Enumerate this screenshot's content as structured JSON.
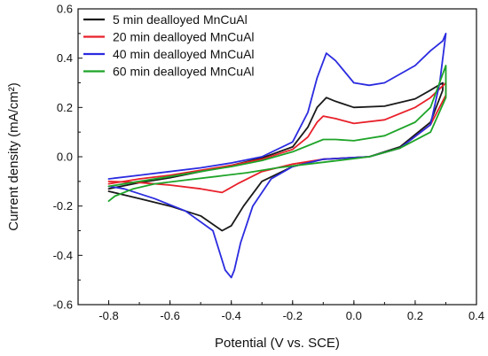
{
  "chart_data": {
    "type": "line",
    "xlabel": "Potential (V vs. SCE)",
    "ylabel": "Current density (mA/cm²)",
    "xlim": [
      -0.9,
      0.4
    ],
    "ylim": [
      -0.6,
      0.6
    ],
    "x_ticks": [
      "-0.8",
      "-0.6",
      "-0.4",
      "-0.2",
      "0.0",
      "0.2",
      "0.4"
    ],
    "y_ticks": [
      "0.6",
      "0.4",
      "0.2",
      "0.0",
      "-0.2",
      "-0.4",
      "-0.6"
    ],
    "legend_position": "top-left",
    "series": [
      {
        "name": "5 min dealloyed MnCuAl",
        "color": "#1a1a1a",
        "x": [
          -0.8,
          -0.7,
          -0.6,
          -0.5,
          -0.4,
          -0.3,
          -0.2,
          -0.15,
          -0.12,
          -0.09,
          -0.06,
          0.0,
          0.1,
          0.2,
          0.25,
          0.29,
          0.29,
          0.25,
          0.15,
          0.05,
          -0.1,
          -0.2,
          -0.3,
          -0.36,
          -0.4,
          -0.43,
          -0.5,
          -0.6,
          -0.7,
          -0.8
        ],
        "y": [
          -0.13,
          -0.105,
          -0.085,
          -0.06,
          -0.035,
          -0.005,
          0.04,
          0.12,
          0.2,
          0.24,
          0.225,
          0.2,
          0.205,
          0.235,
          0.27,
          0.3,
          0.27,
          0.14,
          0.04,
          0.0,
          -0.01,
          -0.04,
          -0.1,
          -0.2,
          -0.28,
          -0.3,
          -0.24,
          -0.2,
          -0.17,
          -0.14
        ]
      },
      {
        "name": "20 min dealloyed MnCuAl",
        "color": "#e8202a",
        "x": [
          -0.8,
          -0.7,
          -0.6,
          -0.5,
          -0.4,
          -0.3,
          -0.2,
          -0.15,
          -0.12,
          -0.1,
          -0.06,
          0.0,
          0.1,
          0.2,
          0.25,
          0.3,
          0.3,
          0.25,
          0.15,
          0.05,
          -0.1,
          -0.2,
          -0.3,
          -0.38,
          -0.43,
          -0.5,
          -0.6,
          -0.7,
          -0.8
        ],
        "y": [
          -0.11,
          -0.09,
          -0.075,
          -0.055,
          -0.035,
          -0.01,
          0.03,
          0.08,
          0.14,
          0.165,
          0.155,
          0.135,
          0.15,
          0.2,
          0.24,
          0.3,
          0.25,
          0.13,
          0.035,
          0.0,
          -0.01,
          -0.03,
          -0.06,
          -0.11,
          -0.145,
          -0.13,
          -0.115,
          -0.105,
          -0.1
        ]
      },
      {
        "name": "40 min dealloyed MnCuAl",
        "color": "#2b2be0",
        "x": [
          -0.8,
          -0.7,
          -0.6,
          -0.5,
          -0.4,
          -0.3,
          -0.2,
          -0.15,
          -0.12,
          -0.09,
          -0.06,
          0.0,
          0.05,
          0.1,
          0.2,
          0.25,
          0.29,
          0.3,
          0.28,
          0.25,
          0.15,
          0.05,
          -0.1,
          -0.2,
          -0.27,
          -0.33,
          -0.37,
          -0.39,
          -0.4,
          -0.42,
          -0.46,
          -0.55,
          -0.65,
          -0.75,
          -0.8
        ],
        "y": [
          -0.09,
          -0.075,
          -0.06,
          -0.045,
          -0.025,
          0.0,
          0.06,
          0.18,
          0.32,
          0.42,
          0.39,
          0.3,
          0.29,
          0.3,
          0.37,
          0.43,
          0.47,
          0.5,
          0.3,
          0.13,
          0.035,
          0.0,
          -0.01,
          -0.04,
          -0.09,
          -0.2,
          -0.35,
          -0.46,
          -0.49,
          -0.46,
          -0.3,
          -0.22,
          -0.17,
          -0.13,
          -0.12
        ]
      },
      {
        "name": "60 min dealloyed MnCuAl",
        "color": "#1ea428",
        "x": [
          -0.8,
          -0.7,
          -0.6,
          -0.5,
          -0.4,
          -0.3,
          -0.2,
          -0.15,
          -0.1,
          -0.06,
          0.0,
          0.1,
          0.2,
          0.25,
          0.3,
          0.3,
          0.25,
          0.15,
          0.05,
          -0.05,
          -0.15,
          -0.25,
          -0.35,
          -0.45,
          -0.55,
          -0.65,
          -0.72,
          -0.78,
          -0.8
        ],
        "y": [
          -0.12,
          -0.1,
          -0.08,
          -0.06,
          -0.04,
          -0.015,
          0.02,
          0.045,
          0.07,
          0.07,
          0.065,
          0.085,
          0.14,
          0.2,
          0.37,
          0.24,
          0.1,
          0.035,
          0.0,
          -0.015,
          -0.03,
          -0.045,
          -0.065,
          -0.08,
          -0.095,
          -0.11,
          -0.13,
          -0.16,
          -0.18
        ]
      }
    ]
  }
}
